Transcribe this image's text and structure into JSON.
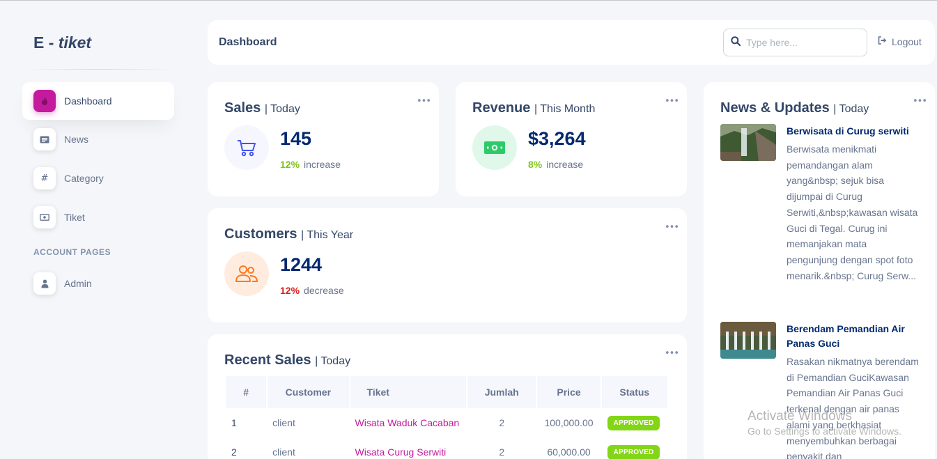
{
  "brand": {
    "prefix": "E - ",
    "italic": "tiket"
  },
  "sidebar": {
    "items": [
      {
        "label": "Dashboard",
        "icon": "fire-icon",
        "active": true
      },
      {
        "label": "News",
        "icon": "newspaper-icon"
      },
      {
        "label": "Category",
        "icon": "hash-icon"
      },
      {
        "label": "Tiket",
        "icon": "ticket-icon"
      }
    ],
    "section_title": "ACCOUNT PAGES",
    "account_items": [
      {
        "label": "Admin",
        "icon": "user-icon"
      }
    ]
  },
  "header": {
    "title": "Dashboard",
    "search_placeholder": "Type here...",
    "logout_label": "Logout"
  },
  "sales": {
    "title": "Sales",
    "period": "| Today",
    "value": "145",
    "pct": "12%",
    "trend": "increase",
    "icon": "cart-icon"
  },
  "revenue": {
    "title": "Revenue",
    "period": "| This Month",
    "value": "$3,264",
    "pct": "8%",
    "trend": "increase",
    "icon": "cash-icon"
  },
  "customers": {
    "title": "Customers",
    "period": "| This Year",
    "value": "1244",
    "pct": "12%",
    "trend": "decrease",
    "icon": "people-icon"
  },
  "recent_sales": {
    "title": "Recent Sales",
    "period": "| Today",
    "columns": [
      "#",
      "Customer",
      "Tiket",
      "Jumlah",
      "Price",
      "Status"
    ],
    "rows": [
      {
        "no": "1",
        "customer": "client",
        "tiket": "Wisata Waduk Cacaban",
        "jumlah": "2",
        "price": "100,000.00",
        "status": "APPROVED"
      },
      {
        "no": "2",
        "customer": "client",
        "tiket": "Wisata Curug Serwiti",
        "jumlah": "2",
        "price": "60,000.00",
        "status": "APPROVED"
      }
    ]
  },
  "news": {
    "title": "News & Updates",
    "period": "| Today",
    "items": [
      {
        "title": "Berwisata di Curug serwiti",
        "body": "Berwisata menikmati pemandangan alam yang&nbsp; sejuk bisa dijumpai di Curug Serwiti,&nbsp;kawasan wisata Guci di Tegal. Curug ini memanjakan mata pengunjung dengan spot foto menarik.&nbsp; Curug Serw..."
      },
      {
        "title": "Berendam Pemandian Air Panas Guci",
        "body": "Rasakan nikmatnya berendam di Pemandian GuciKawasan Pemandian Air Panas Guci terkenal dengan air panas alami yang berkhasiat menyembuhkan berbagai penyakit dan"
      }
    ]
  },
  "watermark": {
    "line1": "Activate Windows",
    "line2": "Go to Settings to activate Windows."
  },
  "colors": {
    "accent": "#c41a9e",
    "title": "#012970",
    "text": "#67748e",
    "success": "#82d616",
    "danger": "#dc1f1f"
  }
}
